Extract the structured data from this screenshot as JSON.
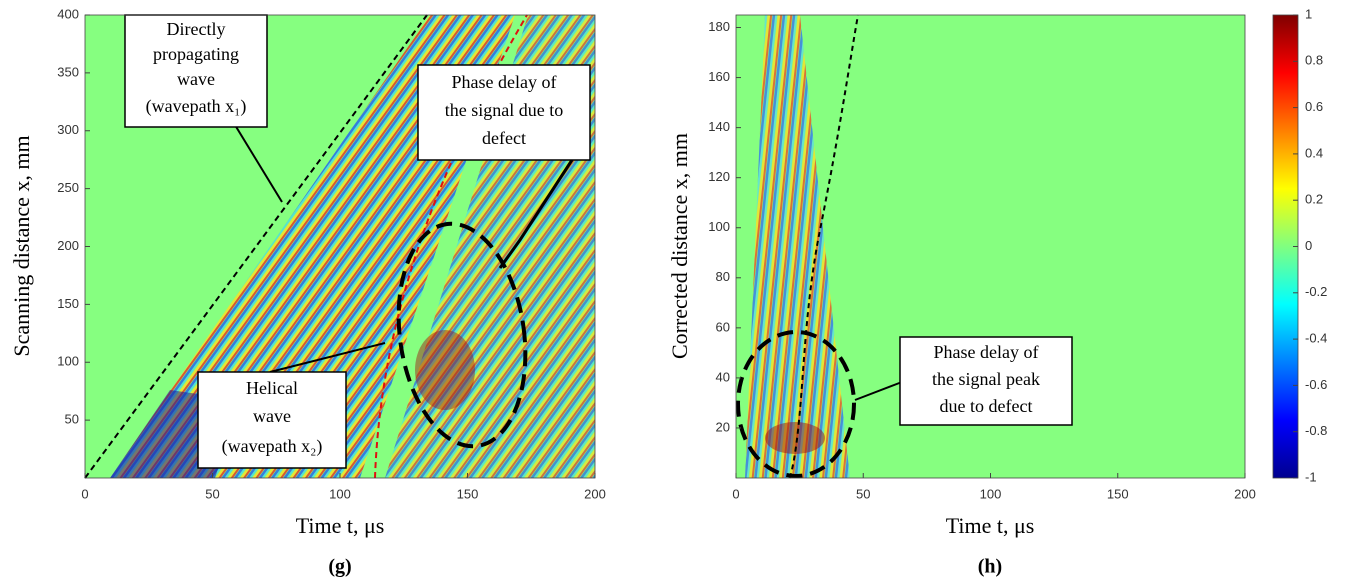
{
  "chart_data": [
    {
      "type": "heatmap",
      "xlabel": "Time t, μs",
      "ylabel": "Scanning distance x, mm",
      "xlim": [
        0,
        200
      ],
      "xticks": [
        0,
        50,
        100,
        150,
        200
      ],
      "ylim": [
        0,
        400
      ],
      "yticks": [
        50,
        100,
        150,
        200,
        250,
        300,
        350,
        400
      ],
      "annotations": [
        {
          "lines": [
            "Directly",
            "propagating",
            "wave",
            "(wavepath x₁)"
          ]
        },
        {
          "lines": [
            "Phase delay of",
            "the signal due to",
            "defect"
          ]
        },
        {
          "lines": [
            "Helical",
            "wave",
            "(wavepath x₂)"
          ]
        }
      ],
      "caption": "(g)"
    },
    {
      "type": "heatmap",
      "xlabel": "Time t, μs",
      "ylabel": "Corrected distance x, mm",
      "xlim": [
        0,
        200
      ],
      "xticks": [
        0,
        50,
        100,
        150,
        200
      ],
      "ylim": [
        0,
        185
      ],
      "yticks": [
        20,
        40,
        60,
        80,
        100,
        120,
        140,
        160,
        180
      ],
      "annotations": [
        {
          "lines": [
            "Phase delay of",
            "the signal peak",
            "due to defect"
          ]
        }
      ],
      "colorbar": {
        "lim": [
          -1,
          1
        ],
        "ticks": [
          -1,
          -0.8,
          -0.6,
          -0.4,
          -0.2,
          0,
          0.2,
          0.4,
          0.6,
          0.8,
          1
        ]
      },
      "caption": "(h)"
    }
  ]
}
